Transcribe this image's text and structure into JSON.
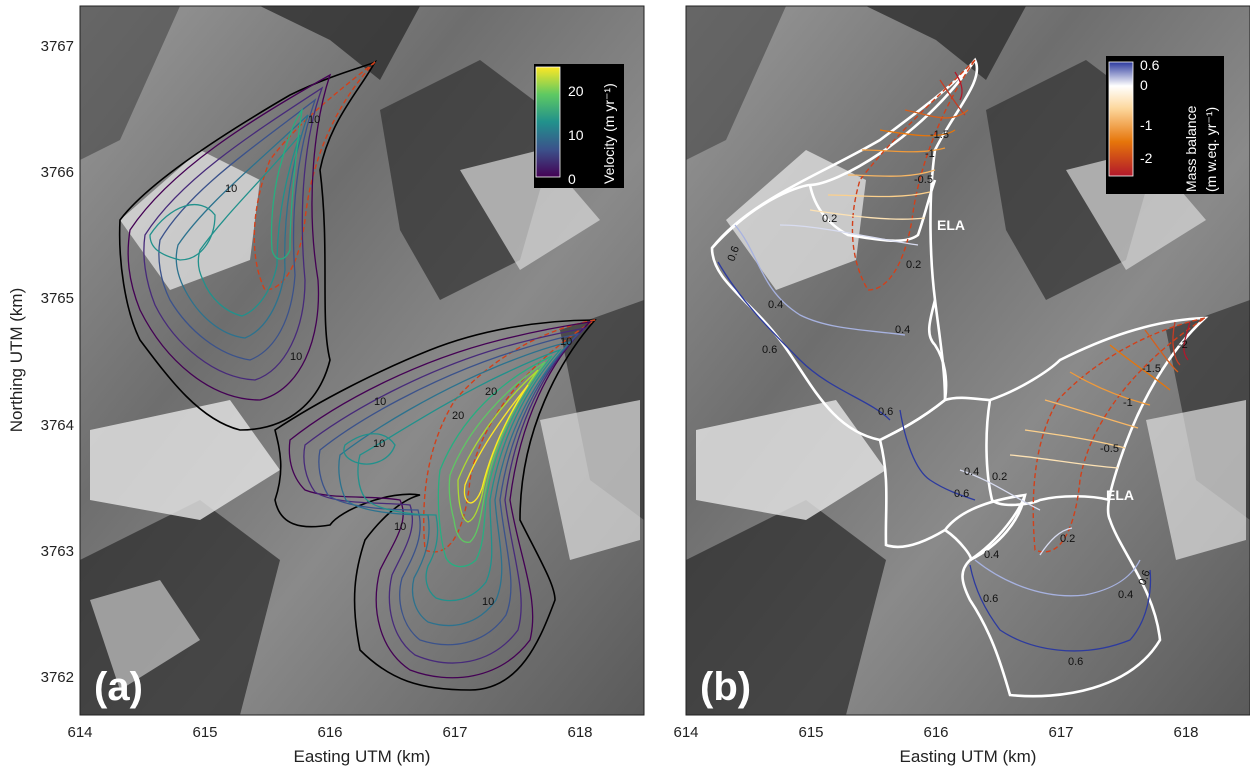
{
  "chart_data": [
    {
      "panel": "(a)",
      "type": "contour",
      "xlabel": "Easting UTM (km)",
      "ylabel": "Northing UTM (km)",
      "xlim": [
        614,
        618.5
      ],
      "ylim": [
        3761.7,
        3767.3
      ],
      "xticks": [
        "614",
        "615",
        "616",
        "617",
        "618"
      ],
      "yticks": [
        "3762",
        "3763",
        "3764",
        "3765",
        "3766",
        "3767"
      ],
      "colorbar": {
        "title": "Velocity (m yr⁻¹)",
        "ticks": [
          "0",
          "10",
          "20"
        ],
        "range": [
          0,
          25
        ],
        "colormap": [
          "#440154",
          "#3b528b",
          "#21918c",
          "#5ec962",
          "#fde725"
        ]
      },
      "contour_labels": [
        "10",
        "10",
        "10",
        "10",
        "10",
        "10",
        "20",
        "20",
        "10",
        "10"
      ]
    },
    {
      "panel": "(b)",
      "type": "contour",
      "xlabel": "Easting UTM (km)",
      "xlim": [
        614,
        618.5
      ],
      "ylim": [
        3761.7,
        3767.3
      ],
      "xticks": [
        "614",
        "615",
        "616",
        "617",
        "618"
      ],
      "colorbar": {
        "title_line1": "Mass balance",
        "title_line2": "(m w.eq. yr⁻¹)",
        "ticks": [
          "0.6",
          "0",
          "-1",
          "-2"
        ],
        "range": [
          -2.3,
          0.6
        ],
        "colormap": [
          "#b2182b",
          "#e6750a",
          "#fdd9a0",
          "#ffffff",
          "#2c3a9f"
        ]
      },
      "contour_labels": [
        "-1.5",
        "-1",
        "-0.5",
        "0.2",
        "0.2",
        "0.6",
        "0.4",
        "0.4",
        "0.6",
        "0.6",
        "-2",
        "-1.5",
        "-1",
        "-0.5",
        "0.4",
        "0.2",
        "0.6",
        "0.2",
        "0.4",
        "0.4",
        "0.6",
        "0.6",
        "0.6"
      ],
      "annotations": [
        "ELA",
        "ELA"
      ]
    }
  ]
}
